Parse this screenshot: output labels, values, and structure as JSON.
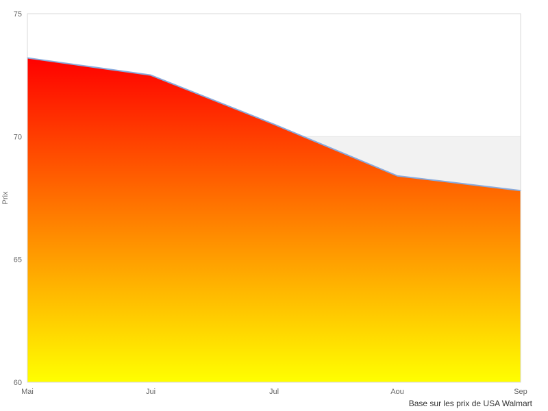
{
  "chart_data": {
    "type": "area",
    "title": "",
    "categories": [
      "Mai",
      "Jui",
      "Jul",
      "Aou",
      "Sep"
    ],
    "values": [
      73.2,
      72.5,
      70.5,
      68.4,
      67.8
    ],
    "series_name": "Prix",
    "xlabel": "",
    "ylabel": "Prix",
    "caption": "Base sur les prix de USA Walmart",
    "ylim": [
      60,
      75
    ],
    "yticks": [
      60,
      65,
      70,
      75
    ],
    "grid": true,
    "legend": "none",
    "plot_band": {
      "from": 65,
      "to": 70,
      "color": "#f2f2f2"
    },
    "colors": {
      "area_gradient_top": "#ff0000",
      "area_gradient_bottom": "#ffff00",
      "line": "#88aadd",
      "gridline": "#e6e6e6",
      "plot_border": "#d8d8d8",
      "tick_label": "#666666",
      "axis_title": "#666666",
      "caption": "#333333",
      "background": "#ffffff"
    }
  }
}
